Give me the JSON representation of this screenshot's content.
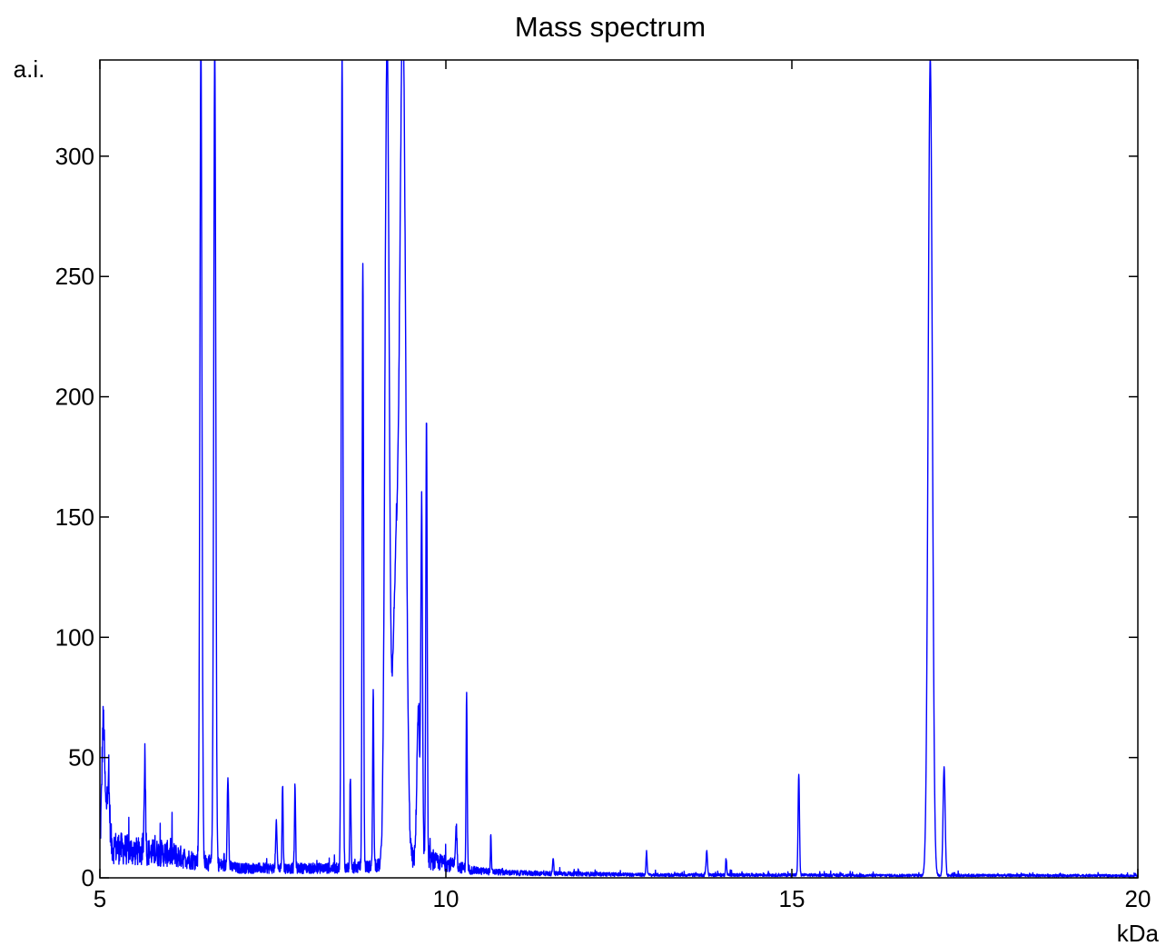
{
  "chart_data": {
    "type": "line",
    "title": "Mass spectrum",
    "xlabel": "kDa",
    "ylabel": "a.i.",
    "xlim": [
      5,
      20
    ],
    "ylim": [
      0,
      340
    ],
    "xticks": [
      5,
      10,
      15,
      20
    ],
    "yticks": [
      0,
      50,
      100,
      150,
      200,
      250,
      300
    ],
    "grid": false,
    "line_color": "#0000ff",
    "baseline": [
      [
        5.0,
        14
      ],
      [
        5.5,
        11
      ],
      [
        6.0,
        10
      ],
      [
        6.4,
        7
      ],
      [
        7.0,
        4
      ],
      [
        7.4,
        4
      ],
      [
        8.0,
        4
      ],
      [
        8.4,
        4
      ],
      [
        8.6,
        4
      ],
      [
        9.0,
        5
      ],
      [
        9.6,
        8
      ],
      [
        10.0,
        6
      ],
      [
        10.4,
        3
      ],
      [
        11.0,
        2
      ],
      [
        12.0,
        1.6
      ],
      [
        13.0,
        1.2
      ],
      [
        14.0,
        1.2
      ],
      [
        15.0,
        1.2
      ],
      [
        16.0,
        1.0
      ],
      [
        17.0,
        1.0
      ],
      [
        18.0,
        1.0
      ],
      [
        19.0,
        1.0
      ],
      [
        20.0,
        0.8
      ]
    ],
    "peaks": [
      {
        "x": 5.05,
        "y": 52,
        "w": 0.02
      },
      {
        "x": 5.12,
        "y": 27,
        "w": 0.02
      },
      {
        "x": 5.65,
        "y": 41,
        "w": 0.01
      },
      {
        "x": 6.46,
        "y": 340,
        "w": 0.015
      },
      {
        "x": 6.66,
        "y": 340,
        "w": 0.015
      },
      {
        "x": 6.85,
        "y": 39,
        "w": 0.01
      },
      {
        "x": 7.55,
        "y": 18,
        "w": 0.01
      },
      {
        "x": 7.64,
        "y": 35,
        "w": 0.008
      },
      {
        "x": 7.82,
        "y": 34,
        "w": 0.008
      },
      {
        "x": 8.5,
        "y": 340,
        "w": 0.012
      },
      {
        "x": 8.62,
        "y": 36,
        "w": 0.008
      },
      {
        "x": 8.8,
        "y": 253,
        "w": 0.01
      },
      {
        "x": 8.95,
        "y": 74,
        "w": 0.008
      },
      {
        "x": 9.15,
        "y": 340,
        "w": 0.03
      },
      {
        "x": 9.28,
        "y": 120,
        "w": 0.05
      },
      {
        "x": 9.38,
        "y": 340,
        "w": 0.04
      },
      {
        "x": 9.6,
        "y": 60,
        "w": 0.02
      },
      {
        "x": 9.65,
        "y": 143,
        "w": 0.012
      },
      {
        "x": 9.72,
        "y": 186,
        "w": 0.01
      },
      {
        "x": 10.15,
        "y": 17,
        "w": 0.01
      },
      {
        "x": 10.3,
        "y": 73,
        "w": 0.008
      },
      {
        "x": 10.65,
        "y": 16,
        "w": 0.006
      },
      {
        "x": 11.55,
        "y": 7,
        "w": 0.008
      },
      {
        "x": 12.9,
        "y": 10,
        "w": 0.008
      },
      {
        "x": 13.77,
        "y": 10,
        "w": 0.01
      },
      {
        "x": 14.05,
        "y": 7,
        "w": 0.008
      },
      {
        "x": 15.1,
        "y": 42,
        "w": 0.01
      },
      {
        "x": 17.0,
        "y": 340,
        "w": 0.03
      },
      {
        "x": 17.2,
        "y": 45,
        "w": 0.015
      }
    ]
  }
}
